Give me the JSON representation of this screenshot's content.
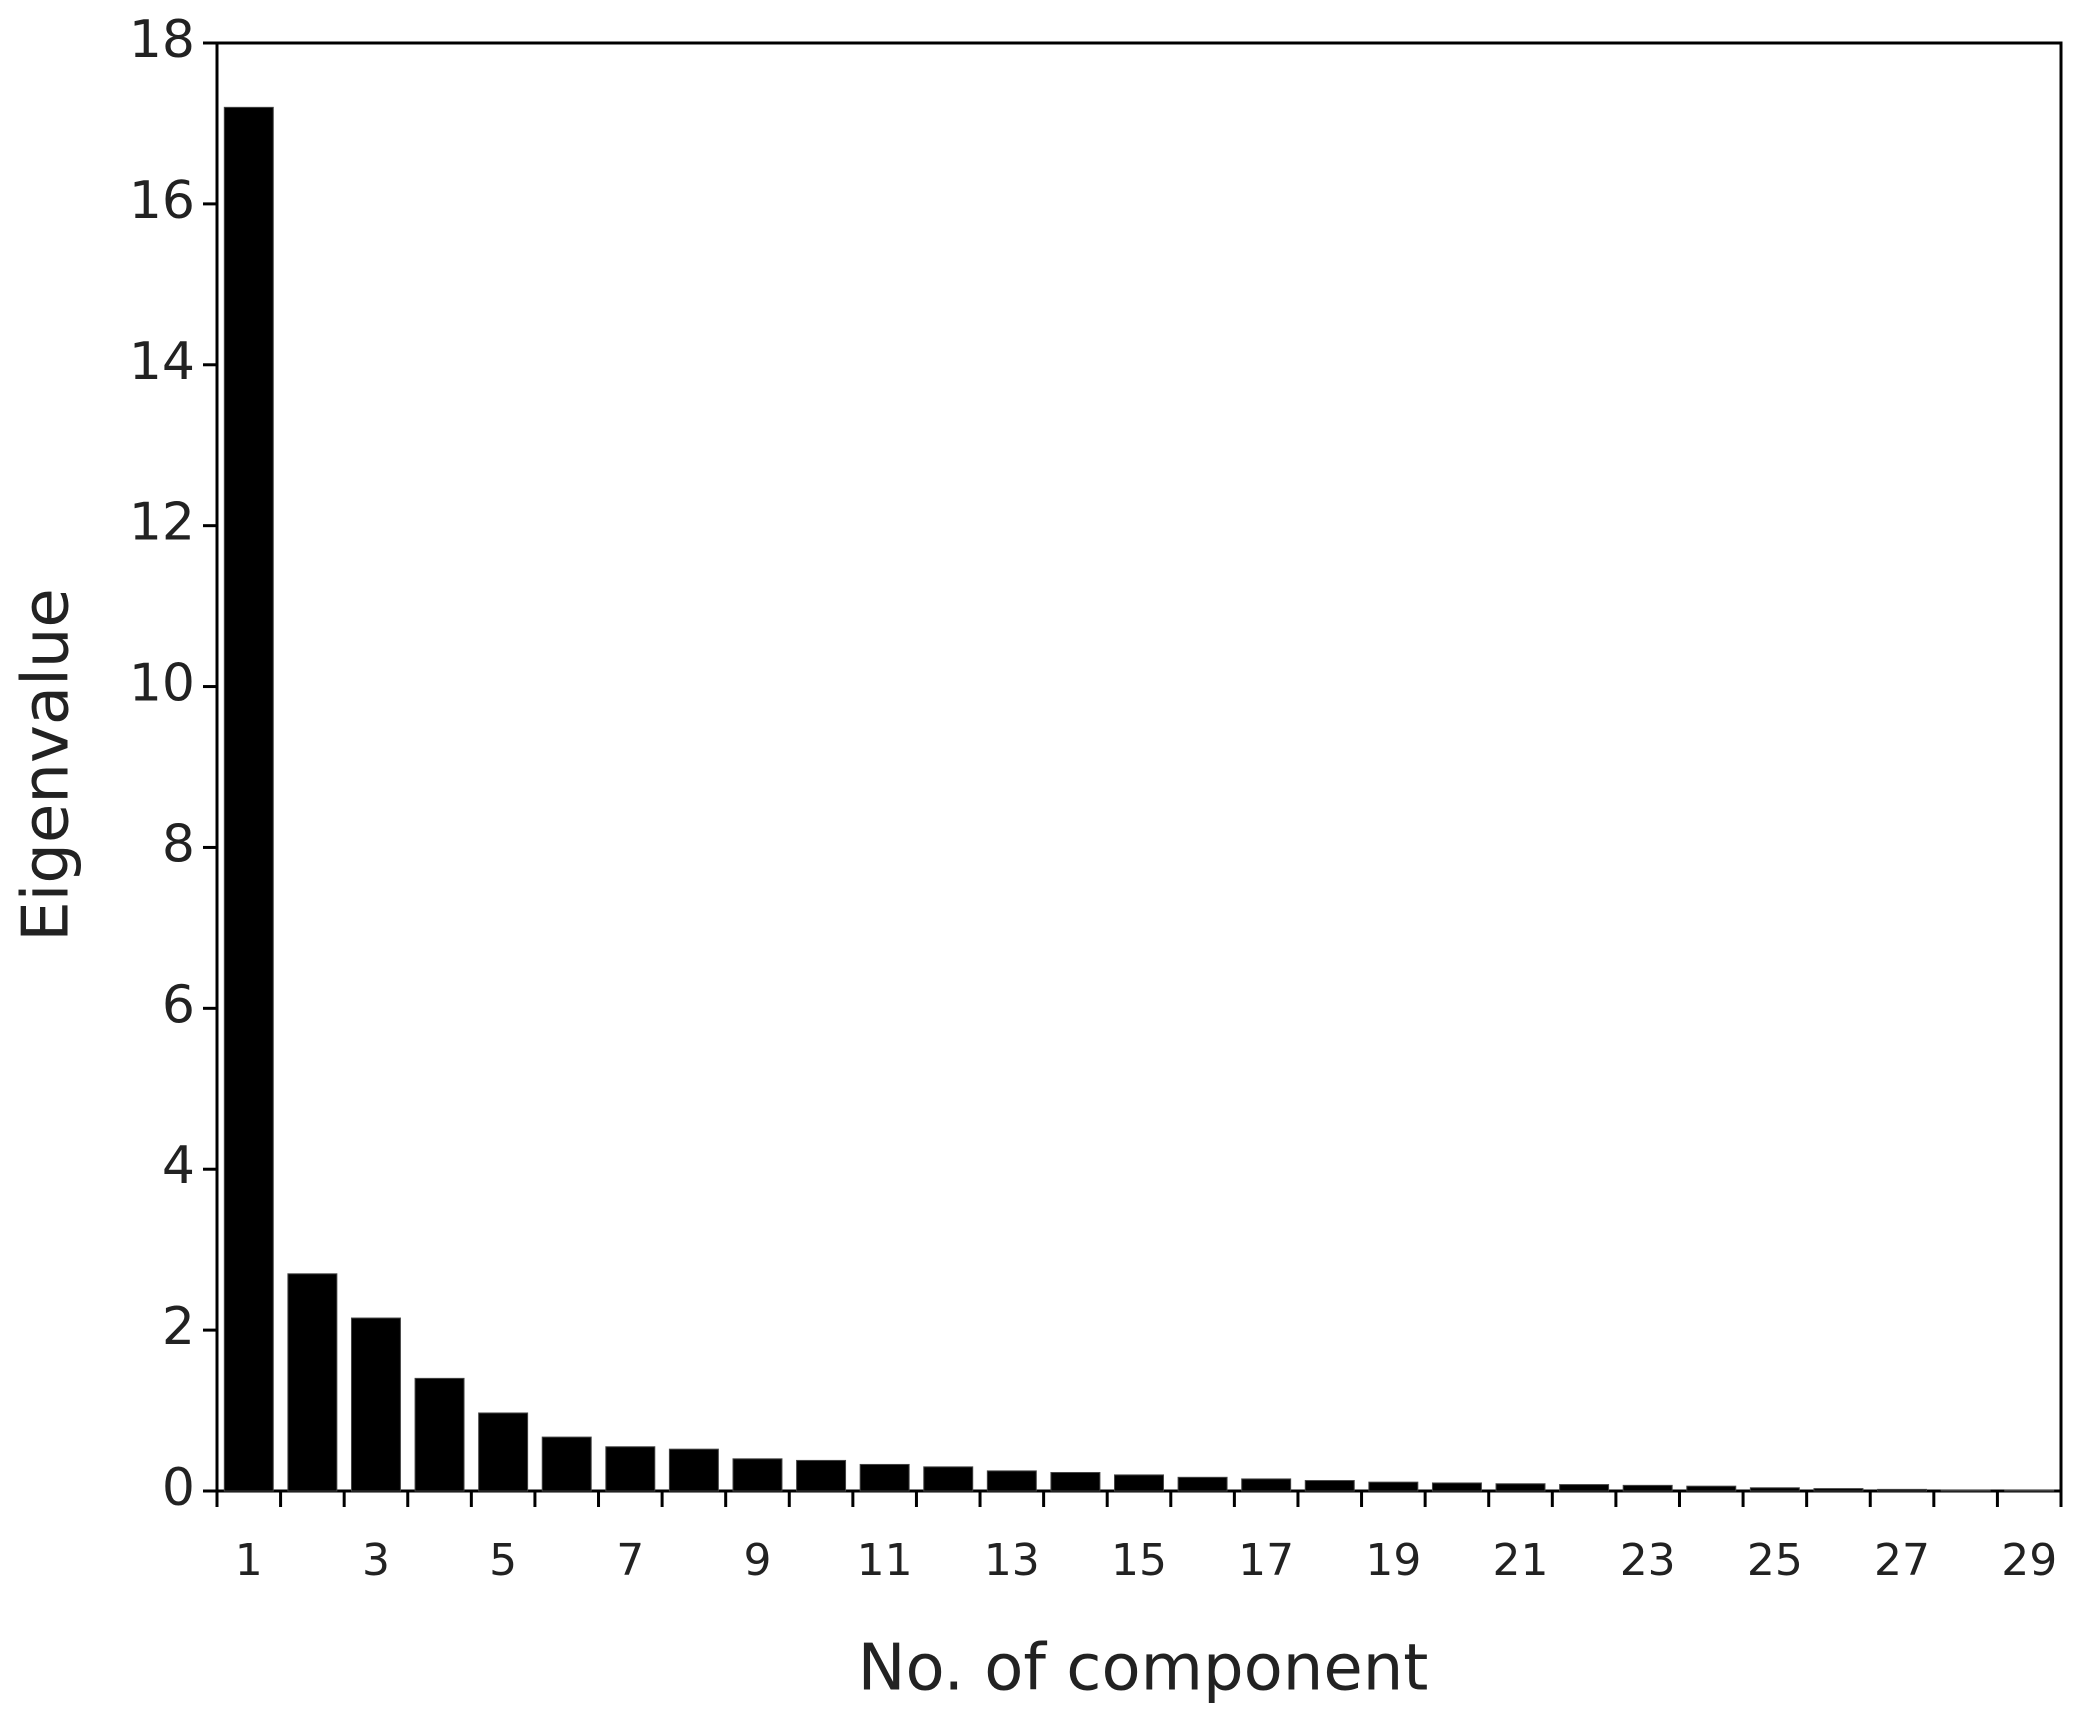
{
  "chart_data": {
    "type": "bar",
    "x_label": "No. of component",
    "y_label": "Eigenvalue",
    "categories": [
      "1",
      null,
      "3",
      null,
      "5",
      null,
      "7",
      null,
      "9",
      null,
      "11",
      null,
      "13",
      null,
      "15",
      null,
      "17",
      null,
      "19",
      null,
      "21",
      null,
      "23",
      null,
      "25",
      null,
      "27",
      null,
      "29"
    ],
    "values": [
      17.2,
      2.7,
      2.15,
      1.4,
      0.97,
      0.67,
      0.55,
      0.52,
      0.4,
      0.38,
      0.33,
      0.3,
      0.25,
      0.23,
      0.2,
      0.17,
      0.15,
      0.13,
      0.11,
      0.1,
      0.09,
      0.08,
      0.07,
      0.06,
      0.04,
      0.03,
      0.02,
      0.01,
      0.01
    ],
    "color": "#000000",
    "ylim": [
      0,
      18
    ],
    "yticks": [
      0,
      2,
      4,
      6,
      8,
      10,
      12,
      14,
      16,
      18
    ],
    "grid": false
  }
}
